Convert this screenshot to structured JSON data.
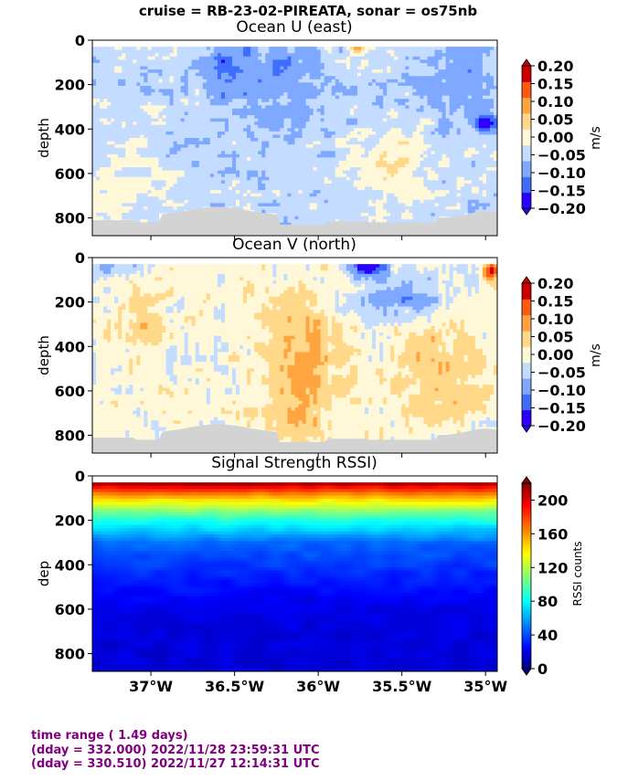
{
  "suptitle": "cruise = RB-23-02-PIREATA,  sonar = os75nb",
  "colors": {
    "bathymetry": "#d3d3d3",
    "footer_text": "#800080"
  },
  "chart_data": [
    {
      "type": "heatmap",
      "title": "Ocean U (east)",
      "ylabel": "depth",
      "colorbar_label": "m/s",
      "colormap": "blue-white-red diverging",
      "zlim": [
        -0.2,
        0.2
      ],
      "colorbar_ticks": [
        "0.20",
        "0.15",
        "0.10",
        "0.05",
        "0.00",
        "−0.05",
        "−0.10",
        "−0.15",
        "−0.20"
      ],
      "xlim_lon": [
        -37.35,
        -34.93
      ],
      "ylim": [
        880,
        0
      ],
      "y_ticks": [
        "0",
        "200",
        "400",
        "600",
        "800"
      ],
      "notable_features": [
        {
          "lon": -35.75,
          "depth": 20,
          "value": 0.2
        },
        {
          "lon": -36.55,
          "depth": 100,
          "value": -0.15
        },
        {
          "lon": -35.6,
          "depth": 550,
          "value": 0.1
        },
        {
          "lon": -35.0,
          "depth": 380,
          "value": -0.15
        }
      ]
    },
    {
      "type": "heatmap",
      "title": "Ocean V (north)",
      "ylabel": "depth",
      "colorbar_label": "m/s",
      "colormap": "blue-white-red diverging",
      "zlim": [
        -0.2,
        0.2
      ],
      "colorbar_ticks": [
        "0.20",
        "0.15",
        "0.10",
        "0.05",
        "0.00",
        "−0.05",
        "−0.10",
        "−0.15",
        "−0.20"
      ],
      "xlim_lon": [
        -37.35,
        -34.93
      ],
      "ylim": [
        880,
        0
      ],
      "y_ticks": [
        "0",
        "200",
        "400",
        "600",
        "800"
      ],
      "notable_features": [
        {
          "lon": -35.7,
          "depth": 40,
          "value": -0.2
        },
        {
          "lon": -36.15,
          "depth": 500,
          "value": 0.15
        },
        {
          "lon": -35.0,
          "depth": 50,
          "value": 0.2
        },
        {
          "lon": -35.3,
          "depth": 450,
          "value": 0.1
        }
      ]
    },
    {
      "type": "heatmap",
      "title": "Signal Strength RSSI)",
      "ylabel": "dep",
      "colorbar_label": "RSSI counts",
      "colormap": "jet",
      "zlim": [
        0,
        220
      ],
      "colorbar_ticks": [
        "200",
        "160",
        "120",
        "80",
        "40",
        "0"
      ],
      "xlim_lon": [
        -37.35,
        -34.93
      ],
      "ylim": [
        880,
        0
      ],
      "y_ticks": [
        "0",
        "200",
        "400",
        "600",
        "800"
      ],
      "x_ticks": [
        "37°W",
        "36.5°W",
        "36°W",
        "35.5°W",
        "35°W"
      ],
      "profile": [
        {
          "depth": 40,
          "value": 200
        },
        {
          "depth": 100,
          "value": 150
        },
        {
          "depth": 160,
          "value": 110
        },
        {
          "depth": 220,
          "value": 80
        },
        {
          "depth": 300,
          "value": 50
        },
        {
          "depth": 450,
          "value": 35
        },
        {
          "depth": 600,
          "value": 22
        },
        {
          "depth": 880,
          "value": 18
        }
      ]
    }
  ],
  "footer": {
    "line1": "time range ( 1.49 days)",
    "line2": "(dday = 332.000) 2022/11/28 23:59:31 UTC",
    "line3": "(dday = 330.510) 2022/11/27 12:14:31 UTC"
  }
}
